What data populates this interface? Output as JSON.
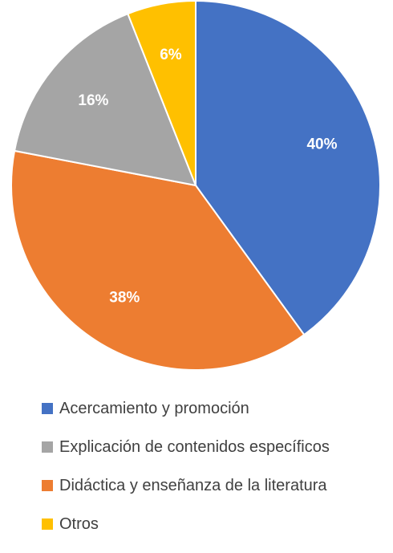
{
  "chart_data": {
    "type": "pie",
    "title": "",
    "start_angle_deg": 90,
    "direction": "clockwise",
    "slices": [
      {
        "label": "Acercamiento y promoción",
        "value": 40,
        "display": "40%",
        "color": "#4472C4"
      },
      {
        "label": "Didáctica y enseñanza de la literatura",
        "value": 38,
        "display": "38%",
        "color": "#ED7D31"
      },
      {
        "label": "Explicación de contenidos específicos",
        "value": 16,
        "display": "16%",
        "color": "#A5A5A5"
      },
      {
        "label": "Otros",
        "value": 6,
        "display": "6%",
        "color": "#FFC000"
      }
    ],
    "legend_position": "bottom",
    "legend": [
      {
        "label": "Acercamiento y promoción",
        "color": "#4472C4"
      },
      {
        "label": "Explicación de contenidos específicos",
        "color": "#A5A5A5"
      },
      {
        "label": "Didáctica y enseñanza de la literatura",
        "color": "#ED7D31"
      },
      {
        "label": "Otros",
        "color": "#FFC000"
      }
    ]
  }
}
